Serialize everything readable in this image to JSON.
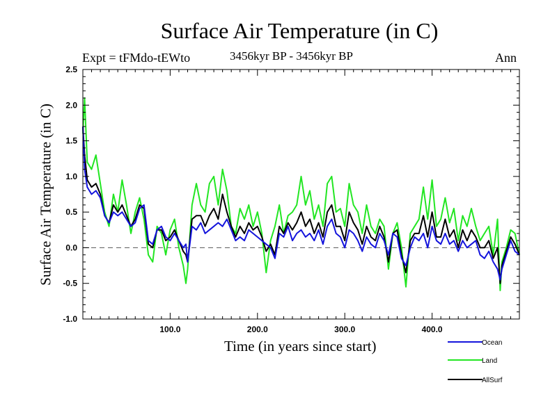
{
  "chart_data": {
    "type": "line",
    "title": "Surface Air Temperature (in C)",
    "experiment": "Expt = tFMdo-tEWto",
    "subtitle": "3456kyr BP - 3456kyr BP",
    "season": "Ann",
    "xlabel": "Time (in years since start)",
    "ylabel": "Surface Air Temperature (in C)",
    "xlim": [
      0,
      500
    ],
    "ylim": [
      -1.0,
      2.5
    ],
    "xticks": [
      100,
      200,
      300,
      400
    ],
    "xtick_labels": [
      "100.0",
      "200.0",
      "300.0",
      "400.0"
    ],
    "yticks": [
      -1.0,
      -0.5,
      0.0,
      0.5,
      1.0,
      1.5,
      2.0,
      2.5
    ],
    "ytick_labels": [
      "-1.0",
      "-0.5",
      "0.0",
      "0.5",
      "1.0",
      "1.5",
      "2.0",
      "2.5"
    ],
    "reference_line": 0.0,
    "legend_position": "bottom-right, outside plot",
    "series": [
      {
        "name": "Ocean",
        "color": "#1414dc",
        "x": [
          0,
          2,
          5,
          10,
          15,
          20,
          25,
          30,
          35,
          40,
          45,
          50,
          55,
          60,
          65,
          70,
          75,
          80,
          85,
          90,
          95,
          100,
          105,
          110,
          115,
          118,
          120,
          125,
          130,
          135,
          140,
          145,
          150,
          155,
          160,
          165,
          170,
          175,
          180,
          185,
          190,
          195,
          200,
          205,
          210,
          215,
          220,
          225,
          230,
          235,
          240,
          245,
          250,
          255,
          260,
          265,
          270,
          275,
          280,
          285,
          290,
          295,
          300,
          305,
          310,
          315,
          320,
          325,
          330,
          335,
          340,
          345,
          350,
          355,
          360,
          365,
          370,
          375,
          380,
          385,
          390,
          395,
          400,
          405,
          410,
          415,
          420,
          425,
          430,
          435,
          440,
          445,
          450,
          455,
          460,
          465,
          470,
          475,
          478,
          480,
          485,
          490,
          495,
          500
        ],
        "y": [
          1.7,
          1.1,
          0.85,
          0.75,
          0.8,
          0.7,
          0.45,
          0.35,
          0.5,
          0.45,
          0.5,
          0.4,
          0.3,
          0.35,
          0.55,
          0.6,
          0.1,
          0.05,
          0.25,
          0.3,
          0.15,
          0.1,
          0.2,
          0.1,
          0.0,
          0.05,
          -0.2,
          0.3,
          0.25,
          0.35,
          0.2,
          0.25,
          0.3,
          0.35,
          0.3,
          0.4,
          0.25,
          0.1,
          0.15,
          0.1,
          0.25,
          0.2,
          0.15,
          0.1,
          0.05,
          0.0,
          -0.15,
          0.2,
          0.15,
          0.3,
          0.1,
          0.2,
          0.25,
          0.15,
          0.2,
          0.1,
          0.25,
          0.05,
          0.3,
          0.4,
          0.2,
          0.15,
          0.0,
          0.25,
          0.2,
          0.1,
          -0.05,
          0.15,
          0.05,
          0.0,
          0.2,
          0.1,
          -0.1,
          0.2,
          0.15,
          -0.15,
          -0.25,
          0.0,
          0.15,
          0.1,
          0.2,
          0.0,
          0.3,
          0.1,
          0.05,
          0.2,
          0.05,
          0.1,
          -0.05,
          0.1,
          0.0,
          0.05,
          0.1,
          -0.1,
          -0.15,
          -0.05,
          -0.2,
          -0.3,
          -0.45,
          -0.3,
          -0.1,
          0.1,
          -0.05,
          -0.1
        ]
      },
      {
        "name": "Land",
        "color": "#22e622",
        "x": [
          0,
          2,
          5,
          10,
          15,
          20,
          25,
          30,
          35,
          40,
          45,
          50,
          55,
          60,
          65,
          70,
          75,
          80,
          85,
          90,
          95,
          100,
          105,
          110,
          115,
          118,
          120,
          125,
          130,
          135,
          140,
          145,
          150,
          155,
          160,
          165,
          170,
          175,
          180,
          185,
          190,
          195,
          200,
          205,
          210,
          215,
          220,
          225,
          230,
          235,
          240,
          245,
          250,
          255,
          260,
          265,
          270,
          275,
          280,
          285,
          290,
          295,
          300,
          305,
          310,
          315,
          320,
          325,
          330,
          335,
          340,
          345,
          350,
          355,
          360,
          365,
          370,
          375,
          380,
          385,
          390,
          395,
          400,
          405,
          410,
          415,
          420,
          425,
          430,
          435,
          440,
          445,
          450,
          455,
          460,
          465,
          470,
          475,
          478,
          480,
          485,
          490,
          495,
          500
        ],
        "y": [
          1.6,
          2.1,
          1.2,
          1.1,
          1.3,
          0.9,
          0.5,
          0.3,
          0.75,
          0.5,
          0.95,
          0.6,
          0.2,
          0.5,
          0.7,
          0.4,
          -0.1,
          -0.2,
          0.3,
          0.2,
          -0.1,
          0.25,
          0.4,
          0.0,
          -0.25,
          -0.5,
          -0.3,
          0.6,
          0.9,
          0.6,
          0.5,
          0.9,
          1.0,
          0.6,
          1.1,
          0.8,
          0.3,
          0.2,
          0.55,
          0.4,
          0.6,
          0.3,
          0.5,
          0.2,
          -0.35,
          0.1,
          0.3,
          0.6,
          0.2,
          0.45,
          0.5,
          0.6,
          1.0,
          0.6,
          0.8,
          0.4,
          0.6,
          0.3,
          0.9,
          1.0,
          0.5,
          0.55,
          0.3,
          0.9,
          0.6,
          0.5,
          0.2,
          0.6,
          0.3,
          0.2,
          0.4,
          0.3,
          -0.3,
          0.2,
          0.35,
          0.0,
          -0.55,
          0.2,
          0.3,
          0.4,
          0.85,
          0.4,
          0.95,
          0.3,
          0.4,
          0.7,
          0.35,
          0.55,
          0.1,
          0.45,
          0.3,
          0.55,
          0.3,
          0.1,
          0.2,
          0.3,
          -0.1,
          0.4,
          -0.6,
          -0.2,
          0.0,
          0.25,
          0.2,
          -0.1
        ]
      },
      {
        "name": "AllSurf",
        "color": "#000000",
        "x": [
          0,
          2,
          5,
          10,
          15,
          20,
          25,
          30,
          35,
          40,
          45,
          50,
          55,
          60,
          65,
          70,
          75,
          80,
          85,
          90,
          95,
          100,
          105,
          110,
          115,
          118,
          120,
          125,
          130,
          135,
          140,
          145,
          150,
          155,
          160,
          165,
          170,
          175,
          180,
          185,
          190,
          195,
          200,
          205,
          210,
          215,
          220,
          225,
          230,
          235,
          240,
          245,
          250,
          255,
          260,
          265,
          270,
          275,
          280,
          285,
          290,
          295,
          300,
          305,
          310,
          315,
          320,
          325,
          330,
          335,
          340,
          345,
          350,
          355,
          360,
          365,
          370,
          375,
          380,
          385,
          390,
          395,
          400,
          405,
          410,
          415,
          420,
          425,
          430,
          435,
          440,
          445,
          450,
          455,
          460,
          465,
          470,
          475,
          478,
          480,
          485,
          490,
          495,
          500
        ],
        "y": [
          1.7,
          1.3,
          0.95,
          0.85,
          0.9,
          0.75,
          0.45,
          0.35,
          0.6,
          0.5,
          0.6,
          0.45,
          0.3,
          0.4,
          0.6,
          0.55,
          0.05,
          0.0,
          0.25,
          0.25,
          0.1,
          0.15,
          0.25,
          0.1,
          -0.05,
          -0.1,
          -0.2,
          0.4,
          0.45,
          0.45,
          0.3,
          0.45,
          0.55,
          0.4,
          0.75,
          0.5,
          0.3,
          0.15,
          0.3,
          0.2,
          0.35,
          0.25,
          0.3,
          0.15,
          -0.05,
          0.05,
          -0.1,
          0.3,
          0.2,
          0.35,
          0.25,
          0.35,
          0.5,
          0.3,
          0.4,
          0.2,
          0.35,
          0.15,
          0.5,
          0.6,
          0.3,
          0.3,
          0.1,
          0.5,
          0.35,
          0.25,
          0.05,
          0.3,
          0.15,
          0.1,
          0.3,
          0.15,
          -0.2,
          0.2,
          0.25,
          -0.1,
          -0.35,
          0.1,
          0.2,
          0.2,
          0.45,
          0.15,
          0.5,
          0.15,
          0.15,
          0.4,
          0.15,
          0.25,
          0.0,
          0.25,
          0.1,
          0.25,
          0.15,
          0.0,
          0.0,
          0.1,
          -0.15,
          0.0,
          -0.5,
          -0.25,
          -0.05,
          0.15,
          0.05,
          -0.1
        ]
      }
    ]
  }
}
